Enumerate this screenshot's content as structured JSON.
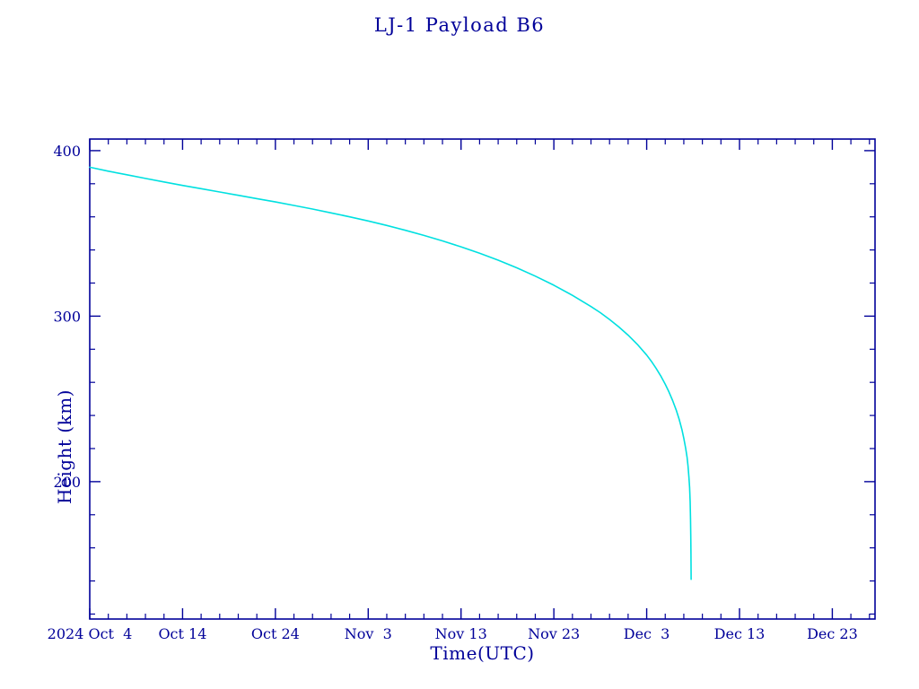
{
  "colors": {
    "axis": "#000099",
    "curve": "#00e0e0",
    "background": "#ffffff"
  },
  "chart_data": {
    "type": "line",
    "title": "LJ-1 Payload B6",
    "xlabel": "Time(UTC)",
    "ylabel": "Height (km)",
    "x_unit": "days since first tick (2024 Oct 4)",
    "x_range": [
      0,
      84.6
    ],
    "y_range": [
      117,
      407
    ],
    "x_major_ticks": [
      0,
      10,
      20,
      30,
      40,
      50,
      60,
      70,
      80
    ],
    "x_tick_labels": [
      "2024 Oct  4",
      "Oct 14",
      "Oct 24",
      "Nov  3",
      "Nov 13",
      "Nov 23",
      "Dec  3",
      "Dec 13",
      "Dec 23"
    ],
    "x_major_step": 10,
    "x_minor_step": 2,
    "y_major_ticks": [
      200,
      300,
      400
    ],
    "y_tick_labels": [
      "200",
      "300",
      "400"
    ],
    "y_major_step": 100,
    "y_minor_step": 20,
    "grid": false,
    "legend": false,
    "series": [
      {
        "name": "height_km",
        "points": [
          [
            0,
            390.0
          ],
          [
            2,
            387.6
          ],
          [
            4,
            385.4
          ],
          [
            6,
            383.2
          ],
          [
            8,
            381.1
          ],
          [
            10,
            379.0
          ],
          [
            12,
            377.0
          ],
          [
            14,
            375.0
          ],
          [
            16,
            373.0
          ],
          [
            18,
            371.0
          ],
          [
            20,
            369.0
          ],
          [
            22,
            366.9
          ],
          [
            24,
            364.7
          ],
          [
            26,
            362.4
          ],
          [
            28,
            360.0
          ],
          [
            30,
            357.5
          ],
          [
            32,
            354.8
          ],
          [
            34,
            351.9
          ],
          [
            36,
            348.8
          ],
          [
            38,
            345.5
          ],
          [
            40,
            341.9
          ],
          [
            42,
            338.0
          ],
          [
            44,
            333.8
          ],
          [
            46,
            329.2
          ],
          [
            48,
            324.2
          ],
          [
            50,
            318.7
          ],
          [
            52,
            312.6
          ],
          [
            54,
            305.8
          ],
          [
            55,
            302.1
          ],
          [
            56,
            298.0
          ],
          [
            57,
            293.5
          ],
          [
            58,
            288.5
          ],
          [
            59,
            282.9
          ],
          [
            60,
            276.5
          ],
          [
            60.5,
            272.8
          ],
          [
            61,
            268.6
          ],
          [
            61.5,
            264.0
          ],
          [
            62,
            258.8
          ],
          [
            62.4,
            254.2
          ],
          [
            62.8,
            249.0
          ],
          [
            63.2,
            242.9
          ],
          [
            63.5,
            237.6
          ],
          [
            63.8,
            231.3
          ],
          [
            64.0,
            226.3
          ],
          [
            64.2,
            220.2
          ],
          [
            64.35,
            214.6
          ],
          [
            64.45,
            209.6
          ],
          [
            64.55,
            202.9
          ],
          [
            64.62,
            196.5
          ],
          [
            64.68,
            188.0
          ],
          [
            64.72,
            178.0
          ],
          [
            64.75,
            167.0
          ],
          [
            64.77,
            157.0
          ],
          [
            64.78,
            149.0
          ],
          [
            64.79,
            141.0
          ]
        ]
      }
    ]
  }
}
